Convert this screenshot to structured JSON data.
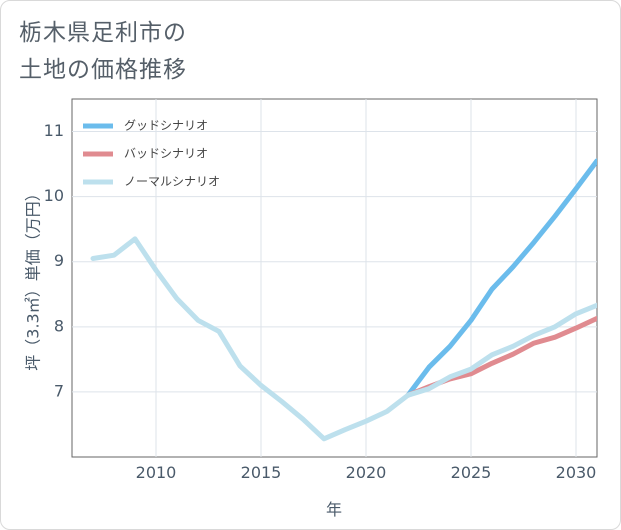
{
  "chart_data": {
    "type": "line",
    "title_lines": [
      "栃木県足利市の",
      "土地の価格推移"
    ],
    "xlabel": "年",
    "ylabel": "坪（3.3㎡）単価（万円）",
    "xlim": [
      2006.0,
      2031.0
    ],
    "ylim": [
      6.0,
      11.5
    ],
    "xticks": [
      2010,
      2015,
      2020,
      2025,
      2030
    ],
    "xtick_labels": [
      "2010",
      "2015",
      "2020",
      "2025",
      "2030"
    ],
    "yticks": [
      7,
      8,
      9,
      10,
      11
    ],
    "ytick_labels": [
      "7",
      "8",
      "9",
      "10",
      "11"
    ],
    "grid": true,
    "legend_position": "top-left",
    "series": [
      {
        "name": "グッドシナリオ",
        "color": "#6bbcec",
        "x": [
          2022,
          2023,
          2024,
          2025,
          2026,
          2027,
          2028,
          2029,
          2030,
          2031
        ],
        "values": [
          6.95,
          7.38,
          7.7,
          8.1,
          8.58,
          8.92,
          9.3,
          9.7,
          10.12,
          10.55
        ]
      },
      {
        "name": "バッドシナリオ",
        "color": "#e08b90",
        "x": [
          2022,
          2023,
          2024,
          2025,
          2026,
          2027,
          2028,
          2029,
          2030,
          2031
        ],
        "values": [
          6.95,
          7.08,
          7.2,
          7.28,
          7.44,
          7.58,
          7.75,
          7.84,
          7.98,
          8.13
        ]
      },
      {
        "name": "ノーマルシナリオ",
        "color": "#bde0ed",
        "x": [
          2007,
          2008,
          2009,
          2010,
          2011,
          2012,
          2013,
          2014,
          2015,
          2016,
          2017,
          2018,
          2019,
          2020,
          2021,
          2022,
          2023,
          2024,
          2025,
          2026,
          2027,
          2028,
          2029,
          2030,
          2031
        ],
        "values": [
          9.05,
          9.1,
          9.35,
          8.87,
          8.43,
          8.1,
          7.93,
          7.4,
          7.1,
          6.85,
          6.58,
          6.28,
          6.42,
          6.55,
          6.7,
          6.95,
          7.05,
          7.23,
          7.35,
          7.57,
          7.7,
          7.87,
          8.0,
          8.2,
          8.33
        ]
      }
    ]
  }
}
